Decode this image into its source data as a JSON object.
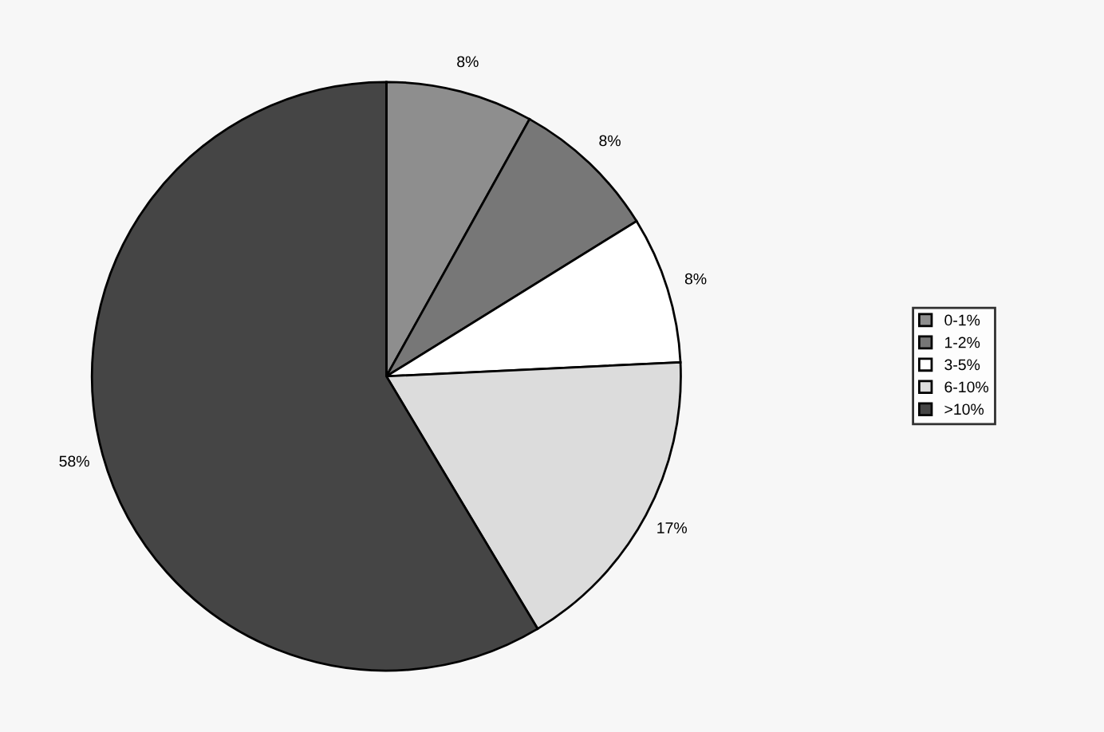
{
  "chart_data": {
    "type": "pie",
    "categories": [
      "0-1%",
      "1-2%",
      "3-5%",
      "6-10%",
      ">10%"
    ],
    "values": [
      8,
      8,
      8,
      17,
      58
    ],
    "colors": [
      "#8e8e8e",
      "#777777",
      "#ffffff",
      "#dcdcdc",
      "#454545"
    ],
    "value_labels": [
      "8%",
      "8%",
      "8%",
      "17%",
      "58%"
    ],
    "legend": "right"
  }
}
